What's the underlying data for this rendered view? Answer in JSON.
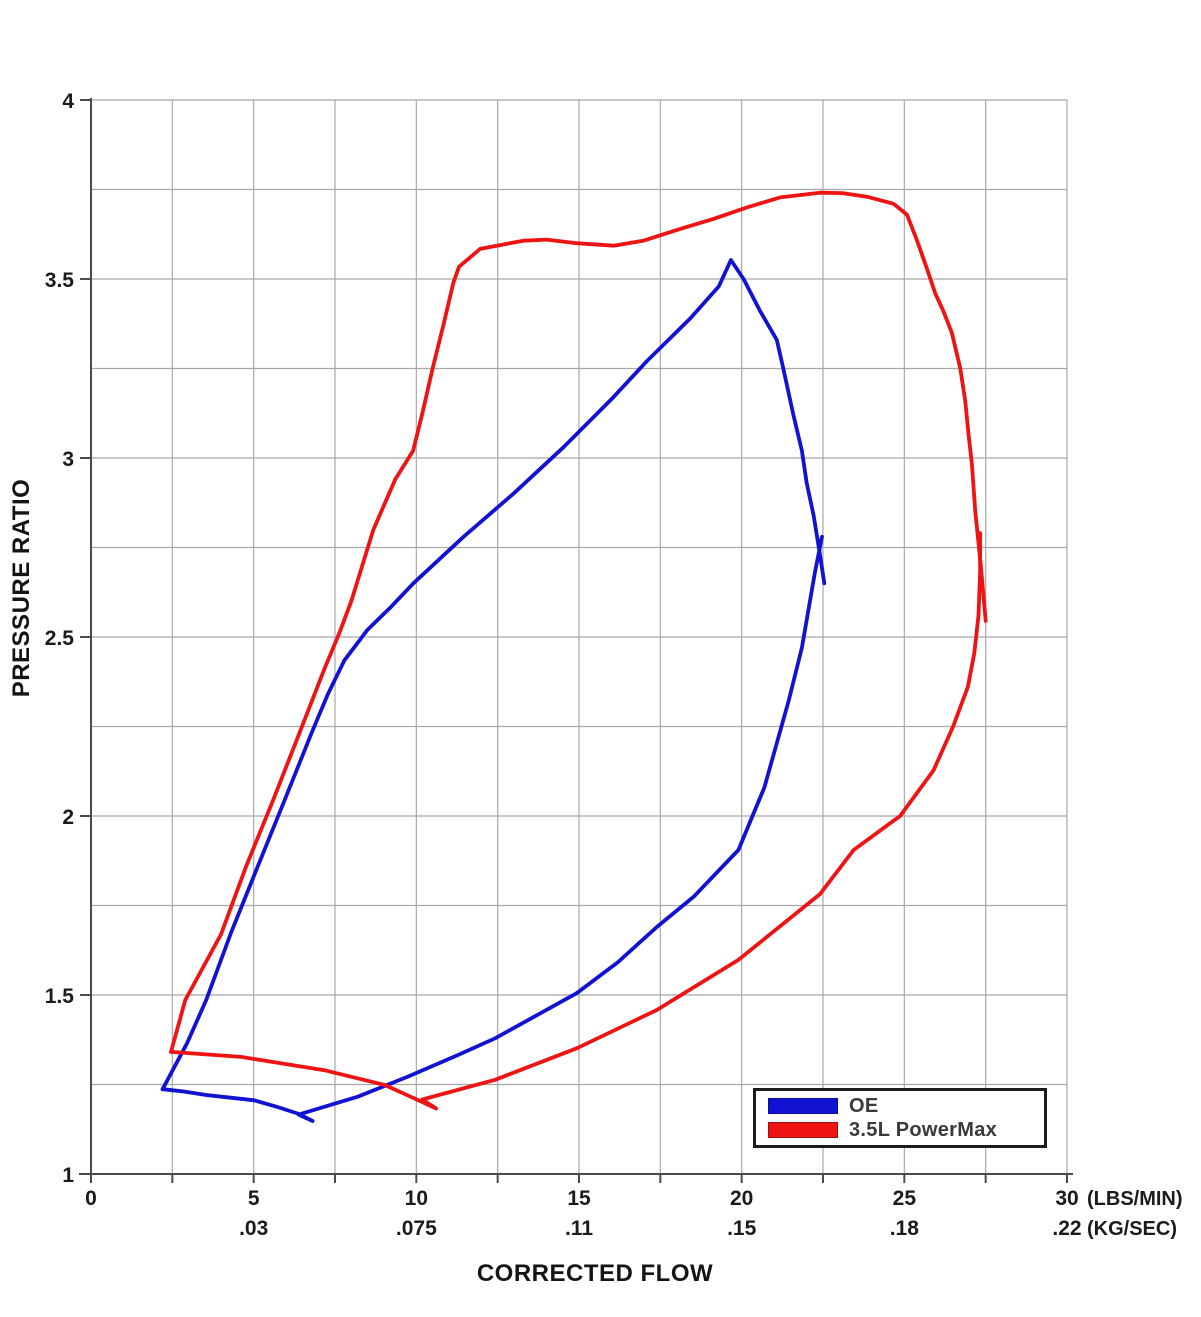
{
  "chart_data": {
    "type": "line",
    "title": "",
    "xlabel": "CORRECTED FLOW",
    "ylabel": "PRESSURE RATIO",
    "x_units": [
      "(LBS/MIN)",
      "(KG/SEC)"
    ],
    "xlim": [
      0,
      30
    ],
    "ylim": [
      1,
      4
    ],
    "grid": true,
    "grid_step_x": 2.5,
    "grid_step_y": 0.25,
    "x_ticks": [
      {
        "flow": 0,
        "lbs": "0",
        "kg": ""
      },
      {
        "flow": 5,
        "lbs": "5",
        "kg": ".03"
      },
      {
        "flow": 10,
        "lbs": "10",
        "kg": ".075"
      },
      {
        "flow": 15,
        "lbs": "15",
        "kg": ".11"
      },
      {
        "flow": 20,
        "lbs": "20",
        "kg": ".15"
      },
      {
        "flow": 25,
        "lbs": "25",
        "kg": ".18"
      },
      {
        "flow": 30,
        "lbs": "30",
        "kg": ".22"
      }
    ],
    "y_ticks": [
      {
        "pr": 1,
        "label": "1"
      },
      {
        "pr": 1.5,
        "label": "1.5"
      },
      {
        "pr": 2,
        "label": "2"
      },
      {
        "pr": 2.5,
        "label": "2.5"
      },
      {
        "pr": 3,
        "label": "3"
      },
      {
        "pr": 3.5,
        "label": "3.5"
      },
      {
        "pr": 4,
        "label": "4"
      }
    ],
    "legend_position": "bottom-right-inside",
    "series": [
      {
        "id": "oe",
        "name": "OE",
        "color": "#1212d2",
        "strokes": {
          "surge-top-right": [
            [
              2.2,
              1.237
            ],
            [
              2.95,
              1.365
            ],
            [
              3.54,
              1.486
            ],
            [
              4.3,
              1.673
            ],
            [
              5.12,
              1.858
            ],
            [
              5.95,
              2.044
            ],
            [
              6.77,
              2.23
            ],
            [
              7.28,
              2.34
            ],
            [
              7.79,
              2.435
            ],
            [
              8.5,
              2.52
            ],
            [
              9.23,
              2.585
            ],
            [
              9.91,
              2.65
            ],
            [
              11.45,
              2.78
            ],
            [
              12.98,
              2.9
            ],
            [
              14.52,
              3.03
            ],
            [
              16.06,
              3.17
            ],
            [
              17.08,
              3.27
            ],
            [
              18.42,
              3.39
            ],
            [
              19.3,
              3.48
            ],
            [
              19.67,
              3.553
            ],
            [
              20.06,
              3.5
            ],
            [
              20.57,
              3.41
            ],
            [
              21.08,
              3.33
            ],
            [
              21.28,
              3.25
            ],
            [
              21.59,
              3.12
            ],
            [
              21.85,
              3.02
            ],
            [
              22.0,
              2.93
            ],
            [
              22.21,
              2.84
            ],
            [
              22.39,
              2.74
            ],
            [
              22.54,
              2.65
            ]
          ],
          "bottom-loop": [
            [
              2.2,
              1.237
            ],
            [
              2.8,
              1.231
            ],
            [
              3.59,
              1.22
            ],
            [
              5.02,
              1.206
            ],
            [
              5.74,
              1.187
            ],
            [
              6.35,
              1.169
            ],
            [
              6.81,
              1.148
            ],
            [
              6.38,
              1.166
            ],
            [
              8.2,
              1.216
            ],
            [
              9.74,
              1.272
            ],
            [
              11.27,
              1.332
            ],
            [
              12.42,
              1.379
            ],
            [
              14.93,
              1.505
            ],
            [
              16.2,
              1.592
            ],
            [
              17.39,
              1.69
            ],
            [
              18.52,
              1.774
            ],
            [
              19.9,
              1.905
            ],
            [
              20.7,
              2.08
            ],
            [
              21.44,
              2.32
            ],
            [
              21.85,
              2.47
            ],
            [
              22.25,
              2.68
            ],
            [
              22.47,
              2.78
            ]
          ]
        }
      },
      {
        "id": "powermax",
        "name": "3.5L PowerMax",
        "color": "#ee1414",
        "strokes": {
          "surge-top-right": [
            [
              2.46,
              1.341
            ],
            [
              2.9,
              1.486
            ],
            [
              4.0,
              1.67
            ],
            [
              4.77,
              1.86
            ],
            [
              5.58,
              2.04
            ],
            [
              6.4,
              2.23
            ],
            [
              7.17,
              2.41
            ],
            [
              7.63,
              2.51
            ],
            [
              8.0,
              2.6
            ],
            [
              8.68,
              2.8
            ],
            [
              9.35,
              2.94
            ],
            [
              9.9,
              3.02
            ],
            [
              10.2,
              3.13
            ],
            [
              10.5,
              3.25
            ],
            [
              10.83,
              3.37
            ],
            [
              11.14,
              3.49
            ],
            [
              11.31,
              3.534
            ],
            [
              11.96,
              3.584
            ],
            [
              13.29,
              3.607
            ],
            [
              14.01,
              3.61
            ],
            [
              14.93,
              3.6
            ],
            [
              16.06,
              3.593
            ],
            [
              16.98,
              3.607
            ],
            [
              18.11,
              3.64
            ],
            [
              19.13,
              3.668
            ],
            [
              20.16,
              3.7
            ],
            [
              21.18,
              3.728
            ],
            [
              22.41,
              3.741
            ],
            [
              23.1,
              3.74
            ],
            [
              23.85,
              3.73
            ],
            [
              24.67,
              3.71
            ],
            [
              25.08,
              3.68
            ],
            [
              25.38,
              3.61
            ],
            [
              25.69,
              3.53
            ],
            [
              25.95,
              3.46
            ],
            [
              26.2,
              3.41
            ],
            [
              26.46,
              3.35
            ],
            [
              26.72,
              3.25
            ],
            [
              26.87,
              3.16
            ],
            [
              26.97,
              3.07
            ],
            [
              27.08,
              2.98
            ],
            [
              27.18,
              2.85
            ],
            [
              27.35,
              2.7
            ],
            [
              27.5,
              2.545
            ]
          ],
          "bottom-loop": [
            [
              2.46,
              1.341
            ],
            [
              4.61,
              1.327
            ],
            [
              7.17,
              1.29
            ],
            [
              9.02,
              1.249
            ],
            [
              9.89,
              1.213
            ],
            [
              10.61,
              1.183
            ],
            [
              10.18,
              1.208
            ],
            [
              12.42,
              1.263
            ],
            [
              14.93,
              1.351
            ],
            [
              17.39,
              1.458
            ],
            [
              19.9,
              1.598
            ],
            [
              22.41,
              1.782
            ],
            [
              23.44,
              1.905
            ],
            [
              24.87,
              2.0
            ],
            [
              25.9,
              2.128
            ],
            [
              26.5,
              2.25
            ],
            [
              26.95,
              2.36
            ],
            [
              27.15,
              2.455
            ],
            [
              27.28,
              2.56
            ],
            [
              27.33,
              2.68
            ],
            [
              27.33,
              2.79
            ]
          ]
        }
      }
    ]
  }
}
